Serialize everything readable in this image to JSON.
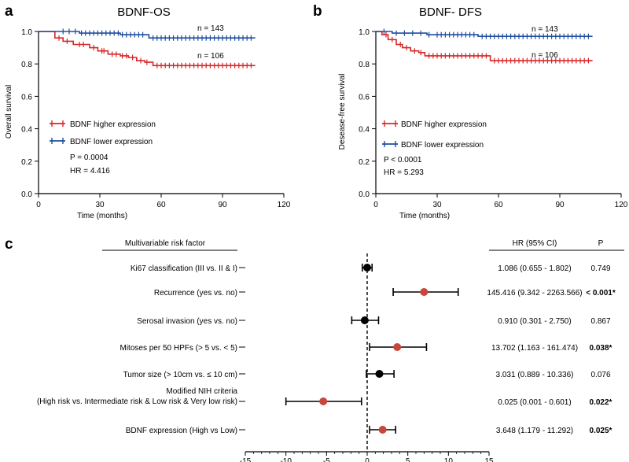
{
  "colors": {
    "higher": "#d62728",
    "lower": "#1f4e9e",
    "axis": "#000000",
    "sig_point": "#c8473d",
    "nonsig_point": "#000000"
  },
  "panel_labels": {
    "a": "a",
    "b": "b",
    "c": "c"
  },
  "chart_data": [
    {
      "type": "line",
      "title": "BDNF-OS",
      "xlabel": "Time (months)",
      "ylabel": "Overall survival",
      "xlim": [
        0,
        120
      ],
      "ylim": [
        0,
        1.0
      ],
      "xticks": [
        "0",
        "30",
        "60",
        "90",
        "120"
      ],
      "yticks": [
        "0.0",
        "0.2",
        "0.4",
        "0.6",
        "0.8",
        "1.0"
      ],
      "legend": [
        "BDNF higher expression",
        "BDNF lower expression"
      ],
      "stats": [
        "P = 0.0004",
        "HR = 4.416"
      ],
      "n_labels": [
        "n = 143",
        "n = 106"
      ],
      "series": [
        {
          "name": "BDNF higher expression",
          "key": "higher",
          "steps": [
            [
              0,
              1.0
            ],
            [
              8,
              1.0
            ],
            [
              8,
              0.96
            ],
            [
              12,
              0.96
            ],
            [
              12,
              0.94
            ],
            [
              17,
              0.94
            ],
            [
              17,
              0.92
            ],
            [
              25,
              0.92
            ],
            [
              25,
              0.9
            ],
            [
              29,
              0.9
            ],
            [
              29,
              0.88
            ],
            [
              34,
              0.88
            ],
            [
              34,
              0.86
            ],
            [
              40,
              0.86
            ],
            [
              40,
              0.85
            ],
            [
              44,
              0.85
            ],
            [
              44,
              0.84
            ],
            [
              48,
              0.84
            ],
            [
              48,
              0.82
            ],
            [
              52,
              0.82
            ],
            [
              52,
              0.81
            ],
            [
              56,
              0.81
            ],
            [
              56,
              0.79
            ],
            [
              106,
              0.79
            ]
          ],
          "censor": [
            10,
            14,
            20,
            22,
            27,
            31,
            32,
            36,
            38,
            41,
            43,
            46,
            50,
            53,
            58,
            60,
            62,
            64,
            66,
            68,
            70,
            72,
            74,
            76,
            78,
            80,
            82,
            84,
            86,
            88,
            90,
            92,
            94,
            96,
            98,
            100,
            102,
            104
          ]
        },
        {
          "name": "BDNF lower expression",
          "key": "lower",
          "steps": [
            [
              0,
              1.0
            ],
            [
              20,
              1.0
            ],
            [
              20,
              0.99
            ],
            [
              40,
              0.99
            ],
            [
              40,
              0.98
            ],
            [
              54,
              0.98
            ],
            [
              54,
              0.96
            ],
            [
              106,
              0.96
            ]
          ],
          "censor": [
            12,
            15,
            18,
            21,
            23,
            25,
            27,
            29,
            31,
            33,
            35,
            37,
            39,
            41,
            43,
            45,
            47,
            49,
            51,
            56,
            58,
            60,
            62,
            64,
            66,
            68,
            70,
            72,
            74,
            76,
            78,
            80,
            82,
            84,
            86,
            88,
            90,
            92,
            94,
            96,
            98,
            100,
            102,
            104
          ]
        }
      ]
    },
    {
      "type": "line",
      "title": "BDNF- DFS",
      "xlabel": "Time (months)",
      "ylabel": "Desease-free survival",
      "xlim": [
        0,
        120
      ],
      "ylim": [
        0,
        1.0
      ],
      "xticks": [
        "0",
        "30",
        "60",
        "90",
        "120"
      ],
      "yticks": [
        "0.0",
        "0.2",
        "0.4",
        "0.6",
        "0.8",
        "1.0"
      ],
      "legend": [
        "BDNF higher expression",
        "BDNF lower expression"
      ],
      "stats": [
        "P < 0.0001",
        "HR = 5.293"
      ],
      "n_labels": [
        "n = 143",
        "n = 106"
      ],
      "series": [
        {
          "name": "BDNF higher expression",
          "key": "higher",
          "steps": [
            [
              0,
              1.0
            ],
            [
              3,
              1.0
            ],
            [
              3,
              0.98
            ],
            [
              6,
              0.98
            ],
            [
              6,
              0.95
            ],
            [
              10,
              0.95
            ],
            [
              10,
              0.92
            ],
            [
              13,
              0.92
            ],
            [
              13,
              0.9
            ],
            [
              17,
              0.9
            ],
            [
              17,
              0.88
            ],
            [
              21,
              0.88
            ],
            [
              21,
              0.87
            ],
            [
              24,
              0.87
            ],
            [
              24,
              0.85
            ],
            [
              56,
              0.85
            ],
            [
              56,
              0.82
            ],
            [
              106,
              0.82
            ]
          ],
          "censor": [
            5,
            8,
            12,
            15,
            19,
            22,
            26,
            28,
            30,
            32,
            34,
            36,
            38,
            40,
            42,
            44,
            46,
            48,
            50,
            52,
            54,
            58,
            60,
            62,
            64,
            66,
            68,
            70,
            72,
            74,
            76,
            78,
            80,
            82,
            84,
            86,
            88,
            90,
            92,
            94,
            96,
            98,
            100,
            102,
            104
          ]
        },
        {
          "name": "BDNF lower expression",
          "key": "lower",
          "steps": [
            [
              0,
              1.0
            ],
            [
              8,
              1.0
            ],
            [
              8,
              0.99
            ],
            [
              25,
              0.99
            ],
            [
              25,
              0.98
            ],
            [
              50,
              0.98
            ],
            [
              50,
              0.97
            ],
            [
              106,
              0.97
            ]
          ],
          "censor": [
            4,
            10,
            14,
            18,
            22,
            26,
            30,
            32,
            34,
            36,
            38,
            40,
            42,
            44,
            46,
            48,
            52,
            54,
            56,
            58,
            60,
            62,
            64,
            66,
            68,
            70,
            72,
            74,
            76,
            78,
            80,
            82,
            84,
            86,
            88,
            90,
            92,
            94,
            96,
            98,
            100,
            102,
            104
          ]
        }
      ]
    },
    {
      "type": "forest",
      "header": "Multivariable risk factor",
      "hr_header": "HR (95% CI)",
      "p_header": "P",
      "xlim": [
        -15,
        15
      ],
      "xticks": [
        "-15",
        "-10",
        "-5",
        "0",
        "5",
        "10",
        "15"
      ],
      "rows": [
        {
          "label": [
            "Ki67 classification (III vs. II & I)"
          ],
          "est": 0.0,
          "lo": -0.6,
          "hi": 0.6,
          "sig": false,
          "hr": "1.086 (0.655 - 1.802)",
          "p": "0.749"
        },
        {
          "label": [
            "Recurrence (yes vs. no)"
          ],
          "est": 7.0,
          "lo": 3.2,
          "hi": 11.2,
          "sig": true,
          "hr": "145.416 (9.342 - 2263.566)",
          "p": "< 0.001*"
        },
        {
          "label": [
            "Serosal invasion (yes vs. no)"
          ],
          "est": -0.3,
          "lo": -1.9,
          "hi": 1.4,
          "sig": false,
          "hr": "0.910 (0.301 - 2.750)",
          "p": "0.867"
        },
        {
          "label": [
            "Mitoses per 50 HPFs (> 5 vs. < 5)"
          ],
          "est": 3.7,
          "lo": 0.3,
          "hi": 7.3,
          "sig": true,
          "hr": "13.702 (1.163 - 161.474)",
          "p": "0.038*"
        },
        {
          "label": [
            "Tumor size (> 10cm vs. ≤ 10 cm)"
          ],
          "est": 1.5,
          "lo": -0.1,
          "hi": 3.3,
          "sig": false,
          "hr": "3.031 (0.889 - 10.336)",
          "p": "0.076"
        },
        {
          "label": [
            "Modified NIH criteria",
            "(High risk vs. Intermediate risk & Low risk & Very low risk)"
          ],
          "est": -5.4,
          "lo": -10.0,
          "hi": -0.7,
          "sig": true,
          "hr": "0.025 (0.001 - 0.601)",
          "p": "0.022*"
        },
        {
          "label": [
            "BDNF expression (High vs Low)"
          ],
          "est": 1.9,
          "lo": 0.3,
          "hi": 3.5,
          "sig": true,
          "hr": "3.648 (1.179 - 11.292)",
          "p": "0.025*"
        }
      ]
    }
  ]
}
